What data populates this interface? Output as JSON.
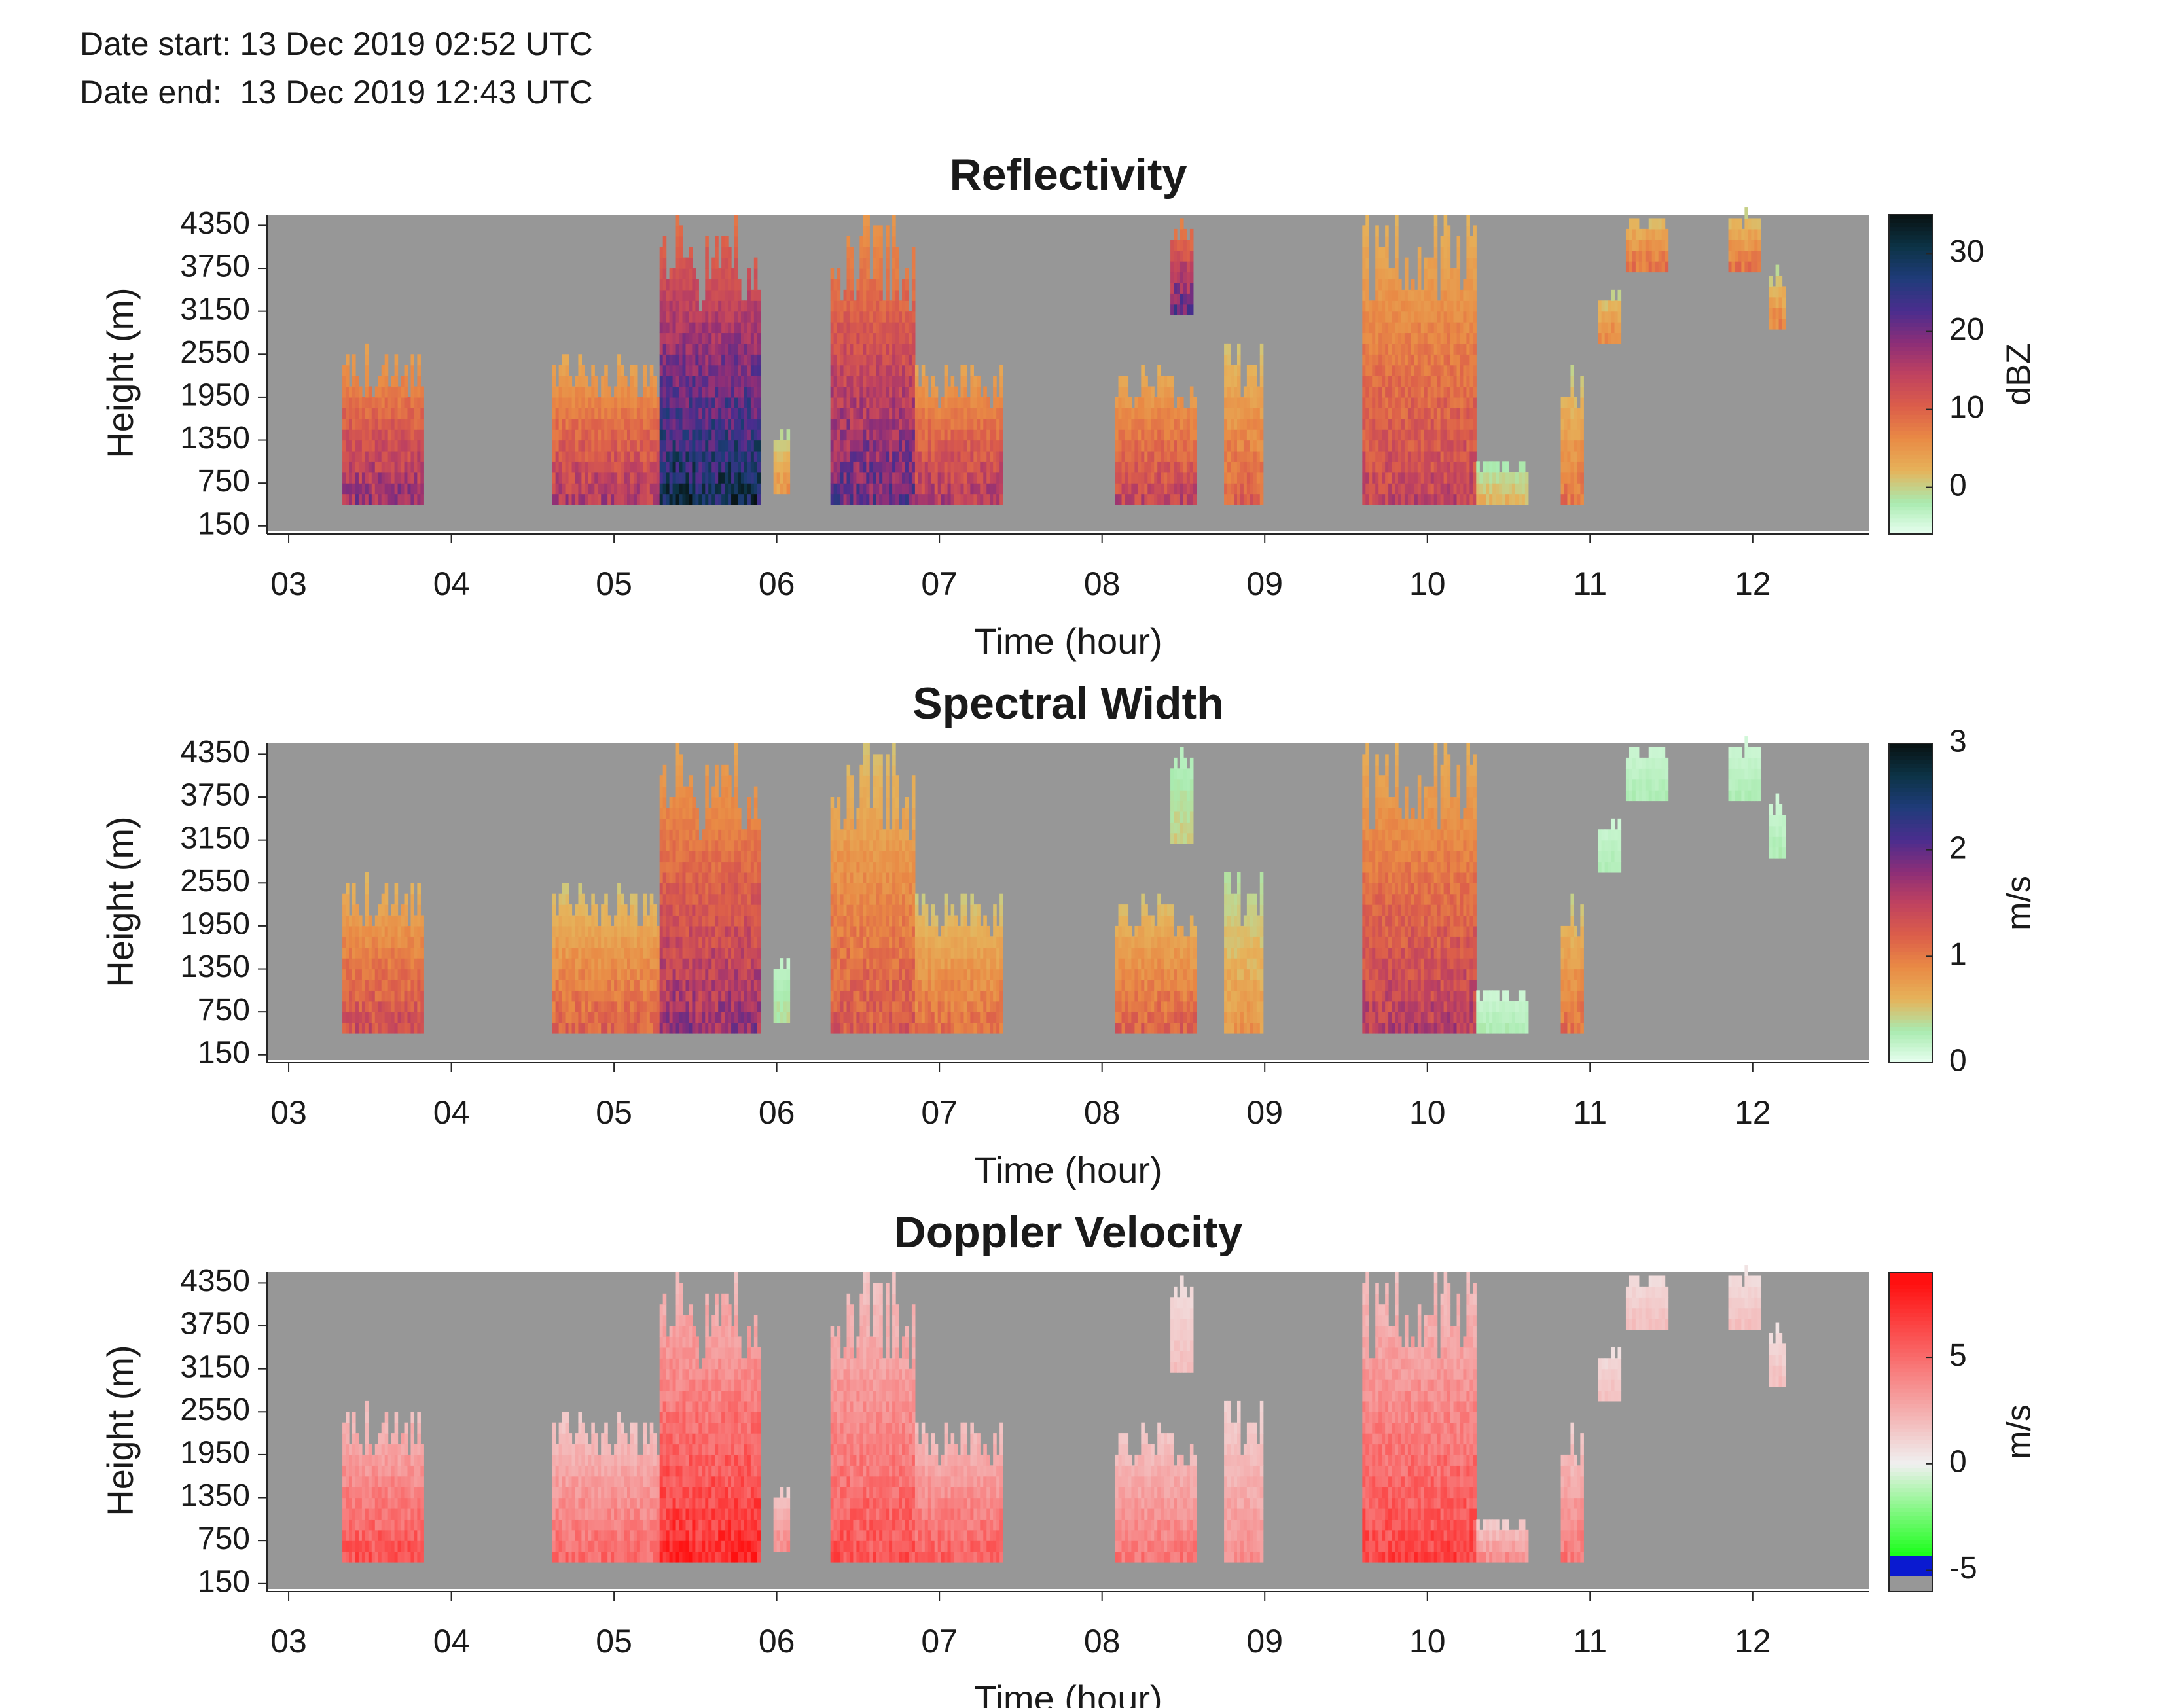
{
  "header": {
    "date_start": "Date start: 13 Dec 2019 02:52 UTC",
    "date_end": "Date end:  13 Dec 2019 12:43 UTC"
  },
  "colors": {
    "background": "#979797",
    "reflectivity_scale": [
      "#e9fff1",
      "#a9ebb0",
      "#e6b25a",
      "#e98a45",
      "#dc5e4a",
      "#c0425f",
      "#8c2e78",
      "#4a2d8e",
      "#1f3c7a",
      "#0c3346",
      "#081212"
    ],
    "spectral_width_scale": [
      "#e9fff1",
      "#a9ebb0",
      "#e6b25a",
      "#e98a45",
      "#dc5e4a",
      "#c0425f",
      "#8c2e78",
      "#4a2d8e",
      "#1f3c7a",
      "#0c3346",
      "#081212"
    ],
    "velocity_scale": {
      "below": "#979797",
      "negative_strong": "#0a1ad0",
      "negative": "#19ff19",
      "zero": "#f0f0f0",
      "positive": "#ff1010"
    }
  },
  "chart_data": [
    {
      "type": "heatmap",
      "title": "Reflectivity",
      "xlabel": "Time (hour)",
      "ylabel": "Height (m)",
      "colorbar_label": "dBZ",
      "xlim": [
        2.867,
        12.717
      ],
      "ylim": [
        75,
        4500
      ],
      "xticks": [
        "03",
        "04",
        "05",
        "06",
        "07",
        "08",
        "09",
        "10",
        "11",
        "12"
      ],
      "xtick_values": [
        3,
        4,
        5,
        6,
        7,
        8,
        9,
        10,
        11,
        12
      ],
      "yticks": [
        "150",
        "750",
        "1350",
        "1950",
        "2550",
        "3150",
        "3750",
        "4350"
      ],
      "ytick_values": [
        150,
        750,
        1350,
        1950,
        2550,
        3150,
        3750,
        4350
      ],
      "clim": [
        -6,
        35
      ],
      "cticks": [
        "0",
        "10",
        "20",
        "30"
      ],
      "ctick_values": [
        0,
        10,
        20,
        30
      ],
      "echoes": [
        {
          "t0": 3.33,
          "t1": 3.82,
          "base": 450,
          "top": 2650,
          "peak": 20
        },
        {
          "t0": 4.62,
          "t1": 5.28,
          "base": 450,
          "top": 2500,
          "peak": 18
        },
        {
          "t0": 5.28,
          "t1": 5.9,
          "base": 450,
          "top": 4500,
          "peak": 33
        },
        {
          "t0": 5.98,
          "t1": 6.08,
          "base": 600,
          "top": 1500,
          "peak": 6
        },
        {
          "t0": 6.33,
          "t1": 6.85,
          "base": 450,
          "top": 4500,
          "peak": 24
        },
        {
          "t0": 6.85,
          "t1": 7.38,
          "base": 450,
          "top": 2400,
          "peak": 18
        },
        {
          "t0": 8.08,
          "t1": 8.58,
          "base": 450,
          "top": 2400,
          "peak": 16
        },
        {
          "t0": 8.42,
          "t1": 8.55,
          "base": 3100,
          "top": 4500,
          "peak": 24
        },
        {
          "t0": 8.75,
          "t1": 8.98,
          "base": 450,
          "top": 2700,
          "peak": 12
        },
        {
          "t0": 9.6,
          "t1": 10.3,
          "base": 450,
          "top": 4500,
          "peak": 16
        },
        {
          "t0": 10.3,
          "t1": 10.62,
          "base": 450,
          "top": 1000,
          "peak": 3
        },
        {
          "t0": 10.82,
          "t1": 10.95,
          "base": 450,
          "top": 2300,
          "peak": 10
        },
        {
          "t0": 11.05,
          "t1": 11.18,
          "base": 2700,
          "top": 3400,
          "peak": 8
        },
        {
          "t0": 11.22,
          "t1": 11.48,
          "base": 3700,
          "top": 4500,
          "peak": 10
        },
        {
          "t0": 11.85,
          "t1": 12.05,
          "base": 3700,
          "top": 4500,
          "peak": 10
        },
        {
          "t0": 12.1,
          "t1": 12.2,
          "base": 2900,
          "top": 3700,
          "peak": 8
        }
      ]
    },
    {
      "type": "heatmap",
      "title": "Spectral Width",
      "xlabel": "Time (hour)",
      "ylabel": "Height (m)",
      "colorbar_label": "m/s",
      "xlim": [
        2.867,
        12.717
      ],
      "ylim": [
        75,
        4500
      ],
      "xticks": [
        "03",
        "04",
        "05",
        "06",
        "07",
        "08",
        "09",
        "10",
        "11",
        "12"
      ],
      "xtick_values": [
        3,
        4,
        5,
        6,
        7,
        8,
        9,
        10,
        11,
        12
      ],
      "yticks": [
        "150",
        "750",
        "1350",
        "1950",
        "2550",
        "3150",
        "3750",
        "4350"
      ],
      "ytick_values": [
        150,
        750,
        1350,
        1950,
        2550,
        3150,
        3750,
        4350
      ],
      "clim": [
        0,
        3
      ],
      "cticks": [
        "0",
        "1",
        "2",
        "3"
      ],
      "ctick_values": [
        0,
        1,
        2,
        3
      ],
      "echoes": [
        {
          "t0": 3.33,
          "t1": 3.82,
          "base": 450,
          "top": 2650,
          "peak": 1.5
        },
        {
          "t0": 4.62,
          "t1": 5.28,
          "base": 450,
          "top": 2500,
          "peak": 1.3
        },
        {
          "t0": 5.28,
          "t1": 5.9,
          "base": 450,
          "top": 4500,
          "peak": 1.9
        },
        {
          "t0": 5.98,
          "t1": 6.08,
          "base": 600,
          "top": 1500,
          "peak": 0.4
        },
        {
          "t0": 6.33,
          "t1": 6.85,
          "base": 450,
          "top": 4500,
          "peak": 1.4
        },
        {
          "t0": 6.85,
          "t1": 7.38,
          "base": 450,
          "top": 2400,
          "peak": 1.2
        },
        {
          "t0": 8.08,
          "t1": 8.58,
          "base": 450,
          "top": 2400,
          "peak": 1.3
        },
        {
          "t0": 8.42,
          "t1": 8.55,
          "base": 3100,
          "top": 4500,
          "peak": 0.5
        },
        {
          "t0": 8.75,
          "t1": 8.98,
          "base": 450,
          "top": 2700,
          "peak": 0.9
        },
        {
          "t0": 9.6,
          "t1": 10.3,
          "base": 450,
          "top": 4500,
          "peak": 1.7
        },
        {
          "t0": 10.3,
          "t1": 10.62,
          "base": 450,
          "top": 1000,
          "peak": 0.3
        },
        {
          "t0": 10.82,
          "t1": 10.95,
          "base": 450,
          "top": 2300,
          "peak": 1.2
        },
        {
          "t0": 11.05,
          "t1": 11.18,
          "base": 2700,
          "top": 3400,
          "peak": 0.3
        },
        {
          "t0": 11.22,
          "t1": 11.48,
          "base": 3700,
          "top": 4500,
          "peak": 0.3
        },
        {
          "t0": 11.85,
          "t1": 12.05,
          "base": 3700,
          "top": 4500,
          "peak": 0.3
        },
        {
          "t0": 12.1,
          "t1": 12.2,
          "base": 2900,
          "top": 3700,
          "peak": 0.3
        }
      ]
    },
    {
      "type": "heatmap",
      "title": "Doppler Velocity",
      "xlabel": "Time (hour)",
      "ylabel": "Height (m)",
      "colorbar_label": "m/s",
      "xlim": [
        2.867,
        12.717
      ],
      "ylim": [
        75,
        4500
      ],
      "xticks": [
        "03",
        "04",
        "05",
        "06",
        "07",
        "08",
        "09",
        "10",
        "11",
        "12"
      ],
      "xtick_values": [
        3,
        4,
        5,
        6,
        7,
        8,
        9,
        10,
        11,
        12
      ],
      "yticks": [
        "150",
        "750",
        "1350",
        "1950",
        "2550",
        "3150",
        "3750",
        "4350"
      ],
      "ytick_values": [
        150,
        750,
        1350,
        1950,
        2550,
        3150,
        3750,
        4350
      ],
      "clim": [
        -6,
        9
      ],
      "cticks": [
        "-5",
        "0",
        "5"
      ],
      "ctick_values": [
        -5,
        0,
        5
      ],
      "echoes": [
        {
          "t0": 3.33,
          "t1": 3.82,
          "base": 450,
          "top": 2650,
          "peak": 6.5
        },
        {
          "t0": 4.62,
          "t1": 5.28,
          "base": 450,
          "top": 2500,
          "peak": 5.5
        },
        {
          "t0": 5.28,
          "t1": 5.9,
          "base": 450,
          "top": 4500,
          "peak": 8
        },
        {
          "t0": 5.98,
          "t1": 6.08,
          "base": 600,
          "top": 1500,
          "peak": 4
        },
        {
          "t0": 6.33,
          "t1": 6.85,
          "base": 450,
          "top": 4500,
          "peak": 6.5
        },
        {
          "t0": 6.85,
          "t1": 7.38,
          "base": 450,
          "top": 2400,
          "peak": 6
        },
        {
          "t0": 8.08,
          "t1": 8.58,
          "base": 450,
          "top": 2400,
          "peak": 5
        },
        {
          "t0": 8.42,
          "t1": 8.55,
          "base": 3100,
          "top": 4500,
          "peak": 2
        },
        {
          "t0": 8.75,
          "t1": 8.98,
          "base": 450,
          "top": 2700,
          "peak": 4
        },
        {
          "t0": 9.6,
          "t1": 10.3,
          "base": 450,
          "top": 4500,
          "peak": 7
        },
        {
          "t0": 10.3,
          "t1": 10.62,
          "base": 450,
          "top": 1000,
          "peak": 4
        },
        {
          "t0": 10.82,
          "t1": 10.95,
          "base": 450,
          "top": 2300,
          "peak": 5
        },
        {
          "t0": 11.05,
          "t1": 11.18,
          "base": 2700,
          "top": 3400,
          "peak": 2
        },
        {
          "t0": 11.22,
          "t1": 11.48,
          "base": 3700,
          "top": 4500,
          "peak": 2
        },
        {
          "t0": 11.85,
          "t1": 12.05,
          "base": 3700,
          "top": 4500,
          "peak": 2
        },
        {
          "t0": 12.1,
          "t1": 12.2,
          "base": 2900,
          "top": 3700,
          "peak": 2
        }
      ]
    }
  ]
}
